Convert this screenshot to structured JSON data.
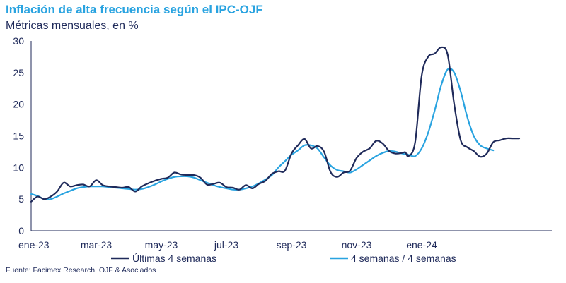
{
  "title": "Inflación de alta frecuencia según el IPC-OJF",
  "subtitle": "Métricas mensuales, en %",
  "source": "Fuente: Facimex Research, OJF & Asociados",
  "colors": {
    "series1": "#1f2a5a",
    "series2": "#29a3e0",
    "axis": "#1f2a5a"
  },
  "chart_data": {
    "type": "line",
    "title": "Inflación de alta frecuencia según el IPC-OJF",
    "ylabel": "Métricas mensuales, en %",
    "xlabel": "",
    "ylim": [
      0,
      30
    ],
    "xlim": [
      0,
      16
    ],
    "y_ticks": [
      0,
      5,
      10,
      15,
      20,
      25,
      30
    ],
    "x_ticks": [
      {
        "label": "ene-23",
        "x": 0
      },
      {
        "label": "mar-23",
        "x": 2
      },
      {
        "label": "may-23",
        "x": 4
      },
      {
        "label": "jul-23",
        "x": 6
      },
      {
        "label": "sep-23",
        "x": 8
      },
      {
        "label": "nov-23",
        "x": 10
      },
      {
        "label": "ene-24",
        "x": 12
      }
    ],
    "x_unit": "months since ene-23",
    "legend": "bottom",
    "series": [
      {
        "name": "Últimas 4 semanas",
        "color": "#1f2a5a",
        "x": [
          0,
          0.2,
          0.4,
          0.6,
          0.8,
          1.0,
          1.2,
          1.4,
          1.6,
          1.8,
          2.0,
          2.2,
          2.4,
          2.6,
          2.8,
          3.0,
          3.2,
          3.4,
          3.6,
          3.8,
          4.0,
          4.2,
          4.4,
          4.6,
          4.8,
          5.0,
          5.2,
          5.4,
          5.6,
          5.8,
          6.0,
          6.2,
          6.4,
          6.6,
          6.8,
          7.0,
          7.2,
          7.4,
          7.6,
          7.8,
          8.0,
          8.2,
          8.4,
          8.6,
          8.8,
          9.0,
          9.2,
          9.4,
          9.6,
          9.8,
          10.0,
          10.2,
          10.4,
          10.6,
          10.8,
          11.0,
          11.2,
          11.4,
          11.5,
          11.6,
          11.8,
          12.0,
          12.2,
          12.4,
          12.6,
          12.8,
          13.0,
          13.2,
          13.4,
          13.6,
          13.8,
          14.0,
          14.2,
          14.4,
          14.6,
          14.8,
          15.0
        ],
        "values": [
          4.6,
          5.4,
          5.0,
          5.4,
          6.2,
          7.6,
          7.0,
          7.2,
          7.3,
          7.0,
          8.0,
          7.2,
          7.0,
          6.9,
          6.8,
          6.9,
          6.2,
          7.0,
          7.5,
          7.9,
          8.2,
          8.4,
          9.2,
          8.9,
          8.8,
          8.8,
          8.4,
          7.3,
          7.4,
          7.6,
          6.9,
          6.8,
          6.5,
          7.2,
          6.7,
          7.4,
          7.9,
          9.0,
          9.4,
          9.5,
          12.2,
          13.5,
          14.5,
          13.0,
          13.4,
          12.5,
          9.3,
          8.5,
          9.2,
          9.5,
          11.5,
          12.5,
          13.0,
          14.2,
          13.8,
          12.6,
          12.2,
          12.3,
          12.4,
          11.8,
          14.0,
          24.5,
          27.5,
          28.0,
          29.0,
          27.8,
          20.0,
          14.3,
          13.2,
          12.6,
          11.7,
          12.2,
          14.0,
          14.3,
          14.6,
          14.6,
          14.6
        ]
      },
      {
        "name": "4 semanas / 4 semanas",
        "color": "#29a3e0",
        "x": [
          0,
          0.2,
          0.4,
          0.6,
          0.8,
          1.0,
          1.2,
          1.4,
          1.6,
          1.8,
          2.0,
          2.2,
          2.4,
          2.6,
          2.8,
          3.0,
          3.2,
          3.4,
          3.6,
          3.8,
          4.0,
          4.2,
          4.4,
          4.6,
          4.8,
          5.0,
          5.2,
          5.4,
          5.6,
          5.8,
          6.0,
          6.2,
          6.4,
          6.6,
          6.8,
          7.0,
          7.2,
          7.4,
          7.6,
          7.8,
          8.0,
          8.2,
          8.4,
          8.6,
          8.8,
          9.0,
          9.2,
          9.4,
          9.6,
          9.8,
          10.0,
          10.2,
          10.4,
          10.6,
          10.8,
          11.0,
          11.2,
          11.4,
          11.6,
          11.8,
          12.0,
          12.2,
          12.4,
          12.6,
          12.8,
          13.0,
          13.2,
          13.4,
          13.6,
          13.8,
          14.0,
          14.2
        ],
        "values": [
          5.8,
          5.5,
          5.0,
          5.0,
          5.4,
          5.9,
          6.3,
          6.7,
          6.9,
          7.0,
          7.0,
          7.0,
          6.9,
          6.8,
          6.7,
          6.6,
          6.5,
          6.6,
          6.9,
          7.3,
          7.8,
          8.2,
          8.5,
          8.6,
          8.6,
          8.4,
          8.0,
          7.6,
          7.2,
          6.9,
          6.7,
          6.5,
          6.5,
          6.7,
          7.0,
          7.5,
          8.1,
          8.8,
          10.0,
          11.0,
          12.0,
          12.7,
          13.5,
          13.5,
          13.0,
          11.6,
          10.3,
          9.6,
          9.4,
          9.2,
          9.7,
          10.4,
          11.1,
          11.8,
          12.3,
          12.6,
          12.5,
          12.2,
          12.0,
          11.8,
          13.0,
          15.5,
          19.0,
          23.0,
          25.5,
          25.0,
          22.0,
          18.0,
          15.0,
          13.5,
          13.0,
          12.7
        ]
      }
    ]
  }
}
